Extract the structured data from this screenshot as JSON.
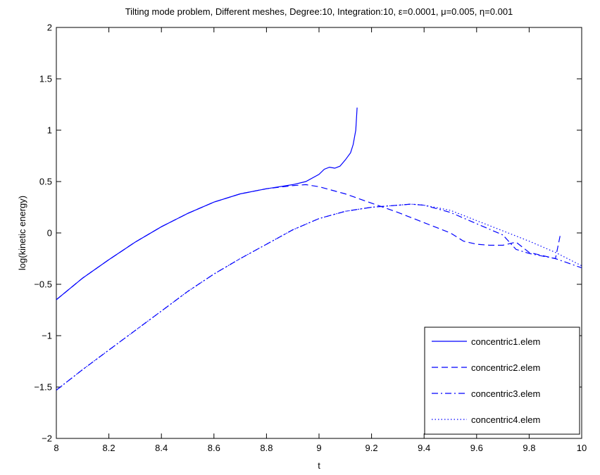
{
  "chart_data": {
    "type": "line",
    "title": "Tilting mode problem, Different meshes, Degree:10, Integration:10, ε=0.0001, μ=0.005, η=0.001",
    "xlabel": "t",
    "ylabel": "log(kinetic energy)",
    "xlim": [
      8,
      10
    ],
    "ylim": [
      -2,
      2
    ],
    "xticks": [
      8,
      8.2,
      8.4,
      8.6,
      8.8,
      9,
      9.2,
      9.4,
      9.6,
      9.8,
      10
    ],
    "xtick_labels": [
      "8",
      "8.2",
      "8.4",
      "8.6",
      "8.8",
      "9",
      "9.2",
      "9.4",
      "9.6",
      "9.8",
      "10"
    ],
    "yticks": [
      2,
      1.5,
      1,
      0.5,
      0,
      -0.5,
      -1,
      -1.5,
      -2
    ],
    "ytick_labels": [
      "2",
      "1.5",
      "1",
      "0.5",
      "0",
      "−0.5",
      "−1",
      "−1.5",
      "−2"
    ],
    "grid": false,
    "legend_position": "bottom-right",
    "line_color": "#0000ff",
    "series": [
      {
        "name": "concentric1.elem",
        "style": "solid",
        "x": [
          8.0,
          8.1,
          8.2,
          8.3,
          8.4,
          8.5,
          8.6,
          8.7,
          8.8,
          8.9,
          8.95,
          9.0,
          9.02,
          9.04,
          9.06,
          9.08,
          9.1,
          9.12,
          9.13,
          9.14,
          9.145
        ],
        "y": [
          -0.65,
          -0.44,
          -0.26,
          -0.09,
          0.06,
          0.19,
          0.3,
          0.38,
          0.43,
          0.47,
          0.5,
          0.57,
          0.62,
          0.64,
          0.63,
          0.65,
          0.71,
          0.78,
          0.86,
          1.0,
          1.22
        ]
      },
      {
        "name": "concentric2.elem",
        "style": "dashed",
        "x": [
          8.0,
          8.1,
          8.2,
          8.3,
          8.4,
          8.5,
          8.6,
          8.7,
          8.8,
          8.9,
          8.95,
          9.0,
          9.1,
          9.2,
          9.3,
          9.4,
          9.5,
          9.55,
          9.6,
          9.65,
          9.7,
          9.75,
          9.8,
          9.85,
          9.9,
          9.92
        ],
        "y": [
          -0.65,
          -0.44,
          -0.26,
          -0.09,
          0.06,
          0.19,
          0.3,
          0.38,
          0.43,
          0.46,
          0.47,
          0.45,
          0.38,
          0.29,
          0.2,
          0.1,
          0.0,
          -0.08,
          -0.11,
          -0.12,
          -0.12,
          -0.09,
          -0.19,
          -0.22,
          -0.25,
          0.0
        ]
      },
      {
        "name": "concentric3.elem",
        "style": "dashdot",
        "x": [
          8.0,
          8.1,
          8.2,
          8.3,
          8.4,
          8.5,
          8.6,
          8.7,
          8.8,
          8.9,
          9.0,
          9.1,
          9.2,
          9.3,
          9.35,
          9.4,
          9.5,
          9.6,
          9.7,
          9.75,
          9.8,
          9.9,
          10.0
        ],
        "y": [
          -1.53,
          -1.33,
          -1.14,
          -0.95,
          -0.76,
          -0.57,
          -0.4,
          -0.25,
          -0.11,
          0.03,
          0.14,
          0.21,
          0.25,
          0.27,
          0.28,
          0.27,
          0.2,
          0.09,
          -0.02,
          -0.16,
          -0.2,
          -0.25,
          -0.34
        ]
      },
      {
        "name": "concentric4.elem",
        "style": "dotted",
        "x": [
          8.0,
          8.1,
          8.2,
          8.3,
          8.4,
          8.5,
          8.6,
          8.7,
          8.8,
          8.9,
          9.0,
          9.1,
          9.2,
          9.3,
          9.35,
          9.4,
          9.5,
          9.6,
          9.7,
          9.8,
          9.9,
          10.0
        ],
        "y": [
          -1.53,
          -1.33,
          -1.14,
          -0.95,
          -0.76,
          -0.57,
          -0.4,
          -0.25,
          -0.11,
          0.03,
          0.14,
          0.21,
          0.25,
          0.27,
          0.28,
          0.27,
          0.22,
          0.12,
          0.02,
          -0.08,
          -0.19,
          -0.32
        ]
      }
    ]
  }
}
